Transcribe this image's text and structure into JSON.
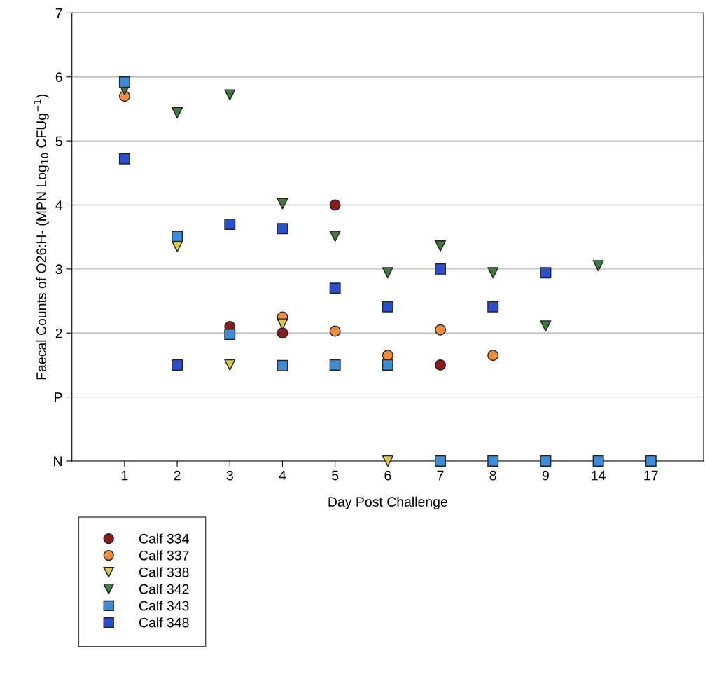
{
  "chart_data": {
    "type": "scatter",
    "xlabel": "Day Post Challenge",
    "ylabel": "Faecal Counts of O26:H- (MPN Log$_{10}$ CFUg$^{−1}$)",
    "categories": [
      "1",
      "2",
      "3",
      "4",
      "5",
      "6",
      "7",
      "8",
      "9",
      "14",
      "17"
    ],
    "ylim": [
      0,
      7
    ],
    "yticks": [
      {
        "value": 0,
        "label": "N"
      },
      {
        "value": 1,
        "label": "P"
      },
      2,
      3,
      4,
      5,
      6,
      7
    ],
    "grid": "y",
    "legend": "bottom left",
    "series": [
      {
        "name": "Calf 334",
        "color": "#8b1a1a",
        "marker": "circle",
        "values": [
          null,
          null,
          2.1,
          2.0,
          4.0,
          null,
          1.5,
          null,
          null,
          null,
          null
        ]
      },
      {
        "name": "Calf 337",
        "color": "#f08c3c",
        "marker": "circle",
        "values": [
          5.7,
          null,
          null,
          2.25,
          2.03,
          1.65,
          2.05,
          1.65,
          null,
          null,
          null
        ]
      },
      {
        "name": "Calf 338",
        "color": "#d8c84a",
        "marker": "triangle",
        "values": [
          null,
          3.35,
          1.5,
          2.14,
          null,
          0,
          null,
          null,
          null,
          null,
          null
        ]
      },
      {
        "name": "Calf 342",
        "color": "#3f7a3c",
        "marker": "triangle",
        "values": [
          5.8,
          5.44,
          5.72,
          4.02,
          3.51,
          2.94,
          3.36,
          2.94,
          2.11,
          3.05,
          null
        ]
      },
      {
        "name": "Calf 343",
        "color": "#3c8cd8",
        "marker": "square",
        "values": [
          5.92,
          3.51,
          1.98,
          1.49,
          1.5,
          1.5,
          0,
          0,
          0,
          0,
          0
        ]
      },
      {
        "name": "Calf 348",
        "color": "#2a4fd0",
        "marker": "square",
        "values": [
          4.72,
          1.5,
          3.7,
          3.63,
          2.7,
          2.41,
          3.0,
          2.41,
          2.94,
          null,
          null
        ]
      }
    ]
  }
}
